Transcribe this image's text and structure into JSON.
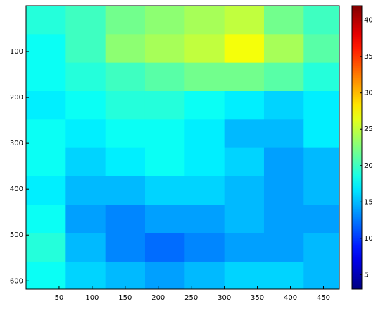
{
  "chart_data": {
    "type": "heatmap",
    "xbins": [
      0,
      60,
      120,
      180,
      240,
      300,
      360,
      420,
      474
    ],
    "ybins": [
      0,
      62,
      124,
      186,
      248,
      310,
      372,
      434,
      496,
      558,
      618
    ],
    "z": [
      [
        19,
        20,
        22,
        23,
        24,
        25,
        22,
        20
      ],
      [
        18,
        20,
        23,
        24,
        25,
        27,
        24,
        21
      ],
      [
        18,
        19,
        20,
        21,
        22,
        22,
        21,
        19
      ],
      [
        17,
        18,
        19,
        19,
        18,
        17,
        16,
        17
      ],
      [
        18,
        17,
        18,
        18,
        17,
        15,
        15,
        17
      ],
      [
        18,
        16,
        17,
        18,
        17,
        16,
        14,
        15
      ],
      [
        17,
        15,
        15,
        16,
        16,
        15,
        14,
        15
      ],
      [
        18,
        14,
        13,
        14,
        14,
        15,
        14,
        14
      ],
      [
        19,
        15,
        13,
        12,
        13,
        14,
        14,
        15
      ],
      [
        18,
        16,
        15,
        14,
        15,
        16,
        16,
        15
      ]
    ],
    "xlim": [
      0,
      474
    ],
    "ylim": [
      0,
      618
    ],
    "xticks": [
      50,
      100,
      150,
      200,
      250,
      300,
      350,
      400,
      450
    ],
    "yticks": [
      100,
      200,
      300,
      400,
      500,
      600
    ],
    "clim": [
      3,
      42
    ],
    "cticks": [
      5,
      10,
      15,
      20,
      25,
      30,
      35,
      40
    ],
    "colormap": "jet",
    "y_reversed": true
  }
}
